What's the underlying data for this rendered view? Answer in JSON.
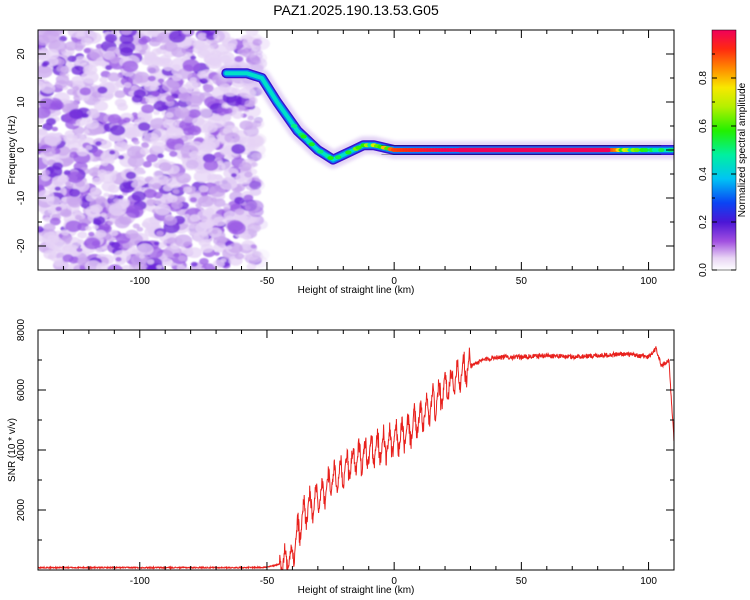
{
  "title": "PAZ1.2025.190.13.53.G05",
  "chart_data": [
    {
      "type": "heatmap",
      "xlabel": "Height of straight line (km)",
      "ylabel": "Frequency (Hz)",
      "xlim": [
        -140,
        110
      ],
      "ylim": [
        -25,
        25
      ],
      "xticks": [
        -100,
        -50,
        0,
        50,
        100
      ],
      "yticks": [
        -20,
        -10,
        0,
        10,
        20
      ],
      "colorbar": {
        "label": "Normalized spectral amplitude",
        "range": [
          0,
          1
        ],
        "ticks": [
          0.0,
          0.2,
          0.4,
          0.6,
          0.8
        ]
      },
      "noise_region_x": [
        -140,
        -52
      ],
      "ridge": {
        "x": [
          -66,
          -58,
          -52,
          -46,
          -42,
          -38,
          -34,
          -30,
          -27,
          -24,
          -20,
          -16,
          -12,
          -8,
          -4,
          0,
          20,
          40,
          60,
          80,
          100,
          110
        ],
        "y": [
          16,
          16,
          15,
          10,
          7,
          4,
          2,
          0,
          -1,
          -2,
          -1,
          0,
          1,
          1,
          0.5,
          0,
          0,
          0,
          0,
          0,
          0,
          0
        ],
        "amplitude": [
          0.25,
          0.3,
          0.35,
          0.3,
          0.4,
          0.55,
          0.6,
          0.5,
          0.55,
          0.6,
          0.5,
          0.65,
          0.7,
          0.75,
          0.8,
          0.9,
          1.0,
          1.0,
          1.0,
          1.0,
          0.6,
          0.5
        ]
      }
    },
    {
      "type": "line",
      "xlabel": "Height of straight line (km)",
      "ylabel": "SNR (10 * v/v)",
      "xlim": [
        -140,
        110
      ],
      "ylim": [
        0,
        8000
      ],
      "xticks": [
        -100,
        -50,
        0,
        50,
        100
      ],
      "yticks": [
        2000,
        4000,
        6000,
        8000
      ],
      "series": [
        {
          "color": "#e8201c",
          "x": [
            -140,
            -120,
            -100,
            -80,
            -60,
            -50,
            -45,
            -40,
            -38,
            -35,
            -30,
            -25,
            -20,
            -15,
            -10,
            -5,
            0,
            5,
            10,
            15,
            20,
            25,
            30,
            35,
            40,
            50,
            60,
            70,
            80,
            90,
            100,
            103,
            105,
            108,
            110
          ],
          "y": [
            80,
            80,
            80,
            80,
            80,
            90,
            200,
            500,
            1200,
            2000,
            2300,
            2900,
            3300,
            3700,
            3900,
            4100,
            4300,
            4600,
            5000,
            5500,
            6000,
            6500,
            6800,
            7000,
            7100,
            7100,
            7150,
            7100,
            7150,
            7200,
            7100,
            7400,
            6800,
            7000,
            4300
          ]
        }
      ]
    }
  ]
}
